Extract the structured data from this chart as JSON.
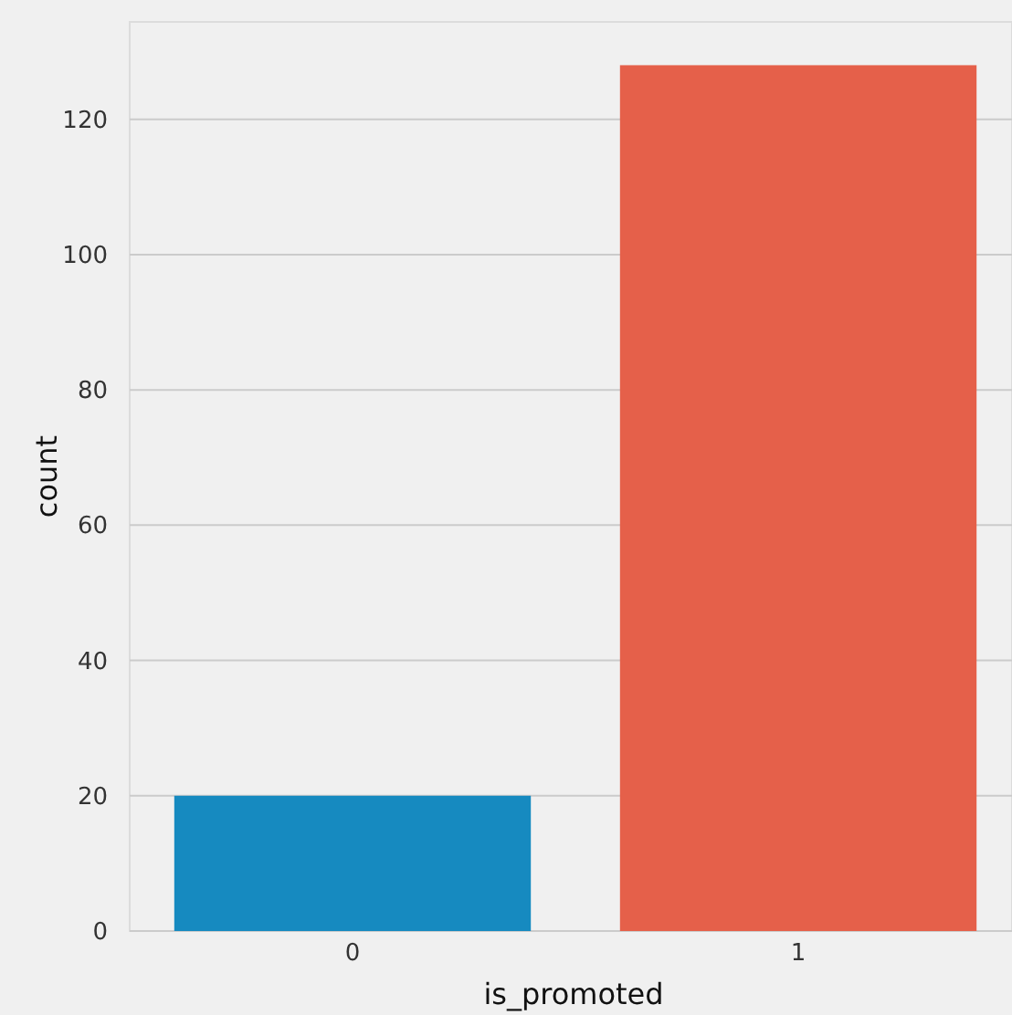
{
  "chart_data": {
    "type": "bar",
    "categories": [
      "0",
      "1"
    ],
    "values": [
      20,
      128
    ],
    "colors": [
      "#168ac0",
      "#e5604a"
    ],
    "xlabel": "is_promoted",
    "ylabel": "count",
    "ylim": [
      0,
      134.4
    ],
    "yticks": [
      0,
      20,
      40,
      60,
      80,
      100,
      120
    ],
    "grid": "y"
  }
}
